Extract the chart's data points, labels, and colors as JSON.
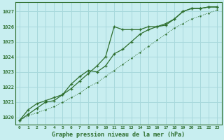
{
  "title": "Graphe pression niveau de la mer (hPa)",
  "bg_color": "#c8eef0",
  "grid_color": "#a8d8dc",
  "line_color": "#2d6e2d",
  "xlim": [
    -0.5,
    23.5
  ],
  "ylim": [
    1019.5,
    1027.6
  ],
  "yticks": [
    1020,
    1021,
    1022,
    1023,
    1024,
    1025,
    1026,
    1027
  ],
  "xticks": [
    0,
    1,
    2,
    3,
    4,
    5,
    6,
    7,
    8,
    9,
    10,
    11,
    12,
    13,
    14,
    15,
    16,
    17,
    18,
    19,
    20,
    21,
    22,
    23
  ],
  "series1_x": [
    0,
    1,
    2,
    3,
    4,
    5,
    6,
    7,
    8,
    9,
    10,
    11,
    12,
    13,
    14,
    15,
    16,
    17,
    18,
    19,
    20,
    21,
    22,
    23
  ],
  "series1_y": [
    1019.8,
    1020.2,
    1020.6,
    1021.0,
    1021.1,
    1021.5,
    1021.9,
    1022.4,
    1022.9,
    1023.4,
    1024.0,
    1026.0,
    1025.8,
    1025.8,
    1025.8,
    1026.0,
    1026.0,
    1026.1,
    1026.5,
    1027.0,
    1027.2,
    1027.2,
    1027.3,
    1027.3
  ],
  "series2_x": [
    0,
    1,
    2,
    3,
    4,
    5,
    6,
    7,
    8,
    9,
    10,
    11,
    12,
    13,
    14,
    15,
    16,
    17,
    18,
    19,
    20,
    21,
    22,
    23
  ],
  "series2_y": [
    1019.8,
    1020.5,
    1020.9,
    1021.1,
    1021.3,
    1021.5,
    1022.2,
    1022.7,
    1023.1,
    1023.0,
    1023.4,
    1024.2,
    1024.5,
    1025.0,
    1025.5,
    1025.8,
    1026.0,
    1026.2,
    1026.5,
    1027.0,
    1027.2,
    1027.2,
    1027.3,
    1027.3
  ],
  "series3_x": [
    0,
    1,
    2,
    3,
    4,
    5,
    6,
    7,
    8,
    9,
    10,
    11,
    12,
    13,
    14,
    15,
    16,
    17,
    18,
    19,
    20,
    21,
    22,
    23
  ],
  "series3_y": [
    1019.8,
    1020.1,
    1020.3,
    1020.5,
    1020.7,
    1021.0,
    1021.3,
    1021.6,
    1022.0,
    1022.3,
    1022.7,
    1023.1,
    1023.5,
    1023.9,
    1024.3,
    1024.7,
    1025.1,
    1025.5,
    1025.9,
    1026.2,
    1026.5,
    1026.7,
    1026.9,
    1027.1
  ]
}
